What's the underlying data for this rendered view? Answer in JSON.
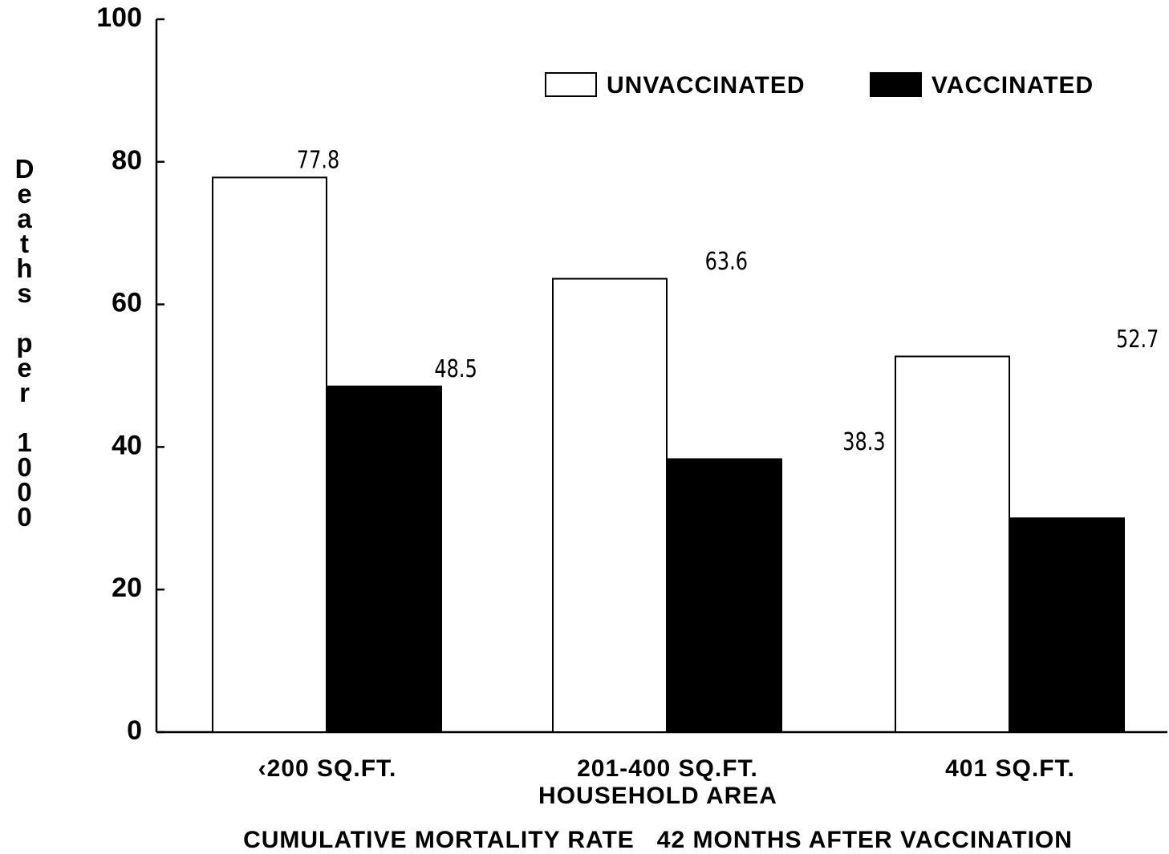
{
  "chart_data": {
    "type": "bar",
    "y_label": "Deaths per 1000",
    "x_label": "HOUSEHOLD AREA",
    "caption": "CUMULATIVE MORTALITY RATE   42 MONTHS AFTER VACCINATION",
    "categories": [
      "‹200 SQ.FT.",
      "201-400 SQ.FT.",
      "401 SQ.FT."
    ],
    "series": [
      {
        "name": "UNVACCINATED",
        "color": "#ffffff",
        "values": [
          77.8,
          63.6,
          52.7
        ],
        "value_labels": [
          "77.8",
          "63.6",
          "52.7"
        ]
      },
      {
        "name": "VACCINATED",
        "color": "#000000",
        "values": [
          48.5,
          38.3,
          30.0
        ],
        "value_labels": [
          "48.5",
          "38.3",
          "30.0"
        ]
      }
    ],
    "ylim": [
      0,
      100
    ],
    "yticks": [
      0,
      20,
      40,
      60,
      80,
      100
    ],
    "legend": "top-right"
  }
}
